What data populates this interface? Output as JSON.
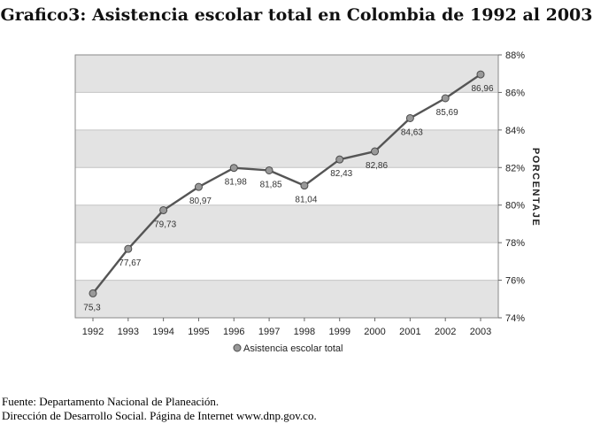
{
  "title": "Grafico3: Asistencia escolar total en Colombia de 1992 al 2003",
  "chart_data": {
    "type": "line",
    "title": "Grafico3: Asistencia escolar total en Colombia de 1992 al 2003",
    "xlabel": "",
    "ylabel": "PORCENTAJE",
    "categories": [
      "1992",
      "1993",
      "1994",
      "1995",
      "1996",
      "1997",
      "1998",
      "1999",
      "2000",
      "2001",
      "2002",
      "2003"
    ],
    "series": [
      {
        "name": "Asistencia escolar total",
        "values": [
          75.3,
          77.67,
          79.73,
          80.97,
          81.98,
          81.85,
          81.04,
          82.43,
          82.86,
          84.63,
          85.69,
          86.96
        ],
        "data_labels": [
          "75,3",
          "77,67",
          "79,73",
          "80,97",
          "81,98",
          "81,85",
          "81,04",
          "82,43",
          "82,86",
          "84,63",
          "85,69",
          "86,96"
        ]
      }
    ],
    "ylim": [
      74,
      88
    ],
    "yticks": [
      74,
      76,
      78,
      80,
      82,
      84,
      86,
      88
    ],
    "ytick_labels": [
      "74%",
      "76%",
      "78%",
      "80%",
      "82%",
      "84%",
      "86%",
      "88%"
    ],
    "y_axis_side": "right",
    "grid": true,
    "legend": "bottom-center",
    "colors": {
      "line": "#555555",
      "marker": "#999999",
      "band_gray": "#e3e3e3",
      "band_white": "#ffffff"
    }
  },
  "footer": {
    "line1": "Fuente: Departamento Nacional de Planeación.",
    "line2": "Dirección de Desarrollo Social. Página de Internet www.dnp.gov.co."
  }
}
